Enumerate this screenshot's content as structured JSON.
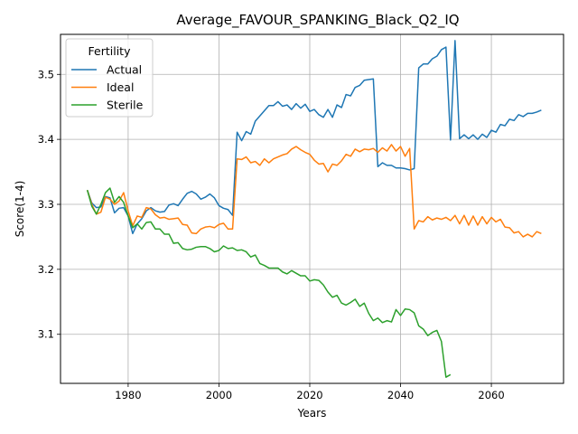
{
  "chart_data": {
    "type": "line",
    "title": "Average_FAVOUR_SPANKING_Black_Q2_IQ",
    "xlabel": "Years",
    "ylabel": "Score(1-4)",
    "xlim": [
      1965.1,
      2075.9
    ],
    "ylim": [
      3.0245,
      3.5616
    ],
    "xticks": [
      1980,
      2000,
      2020,
      2040,
      2060
    ],
    "yticks": [
      3.1,
      3.2,
      3.3,
      3.4,
      3.5
    ],
    "grid": true,
    "legend": {
      "title": "Fertility",
      "position": "top-left"
    },
    "series": [
      {
        "name": "Actual",
        "color": "#1f77b4",
        "x_start": 1971,
        "values": [
          3.322,
          3.302,
          3.295,
          3.296,
          3.312,
          3.31,
          3.287,
          3.294,
          3.295,
          3.282,
          3.255,
          3.27,
          3.278,
          3.29,
          3.295,
          3.29,
          3.288,
          3.289,
          3.299,
          3.301,
          3.298,
          3.308,
          3.317,
          3.32,
          3.316,
          3.308,
          3.311,
          3.316,
          3.31,
          3.298,
          3.294,
          3.292,
          3.283,
          3.411,
          3.398,
          3.412,
          3.408,
          3.428,
          3.436,
          3.444,
          3.452,
          3.452,
          3.458,
          3.451,
          3.453,
          3.446,
          3.455,
          3.448,
          3.454,
          3.443,
          3.446,
          3.438,
          3.434,
          3.446,
          3.434,
          3.453,
          3.449,
          3.469,
          3.467,
          3.48,
          3.483,
          3.491,
          3.492,
          3.493,
          3.358,
          3.364,
          3.36,
          3.36,
          3.356,
          3.356,
          3.355,
          3.353,
          3.355,
          3.51,
          3.516,
          3.516,
          3.524,
          3.528,
          3.538,
          3.542,
          3.399,
          3.552,
          3.401,
          3.407,
          3.401,
          3.407,
          3.4,
          3.408,
          3.403,
          3.414,
          3.411,
          3.423,
          3.421,
          3.431,
          3.429,
          3.438,
          3.435,
          3.44,
          3.44,
          3.442,
          3.445
        ]
      },
      {
        "name": "Ideal",
        "color": "#ff7f0e",
        "x_start": 1971,
        "values": [
          3.322,
          3.3,
          3.285,
          3.288,
          3.311,
          3.308,
          3.3,
          3.305,
          3.318,
          3.29,
          3.267,
          3.282,
          3.28,
          3.295,
          3.293,
          3.284,
          3.279,
          3.28,
          3.277,
          3.278,
          3.279,
          3.269,
          3.268,
          3.256,
          3.255,
          3.262,
          3.265,
          3.266,
          3.264,
          3.269,
          3.271,
          3.262,
          3.262,
          3.37,
          3.369,
          3.373,
          3.364,
          3.366,
          3.36,
          3.37,
          3.364,
          3.37,
          3.373,
          3.376,
          3.378,
          3.385,
          3.389,
          3.384,
          3.38,
          3.377,
          3.368,
          3.362,
          3.363,
          3.35,
          3.362,
          3.36,
          3.367,
          3.377,
          3.374,
          3.385,
          3.381,
          3.385,
          3.384,
          3.386,
          3.38,
          3.387,
          3.382,
          3.392,
          3.382,
          3.389,
          3.374,
          3.386,
          3.262,
          3.275,
          3.273,
          3.281,
          3.276,
          3.279,
          3.277,
          3.28,
          3.275,
          3.283,
          3.27,
          3.283,
          3.268,
          3.282,
          3.268,
          3.281,
          3.27,
          3.28,
          3.273,
          3.277,
          3.265,
          3.264,
          3.256,
          3.258,
          3.25,
          3.254,
          3.25,
          3.258,
          3.255
        ]
      },
      {
        "name": "Sterile",
        "color": "#2ca02c",
        "x_start": 1971,
        "values": [
          3.322,
          3.297,
          3.285,
          3.3,
          3.318,
          3.325,
          3.303,
          3.312,
          3.303,
          3.282,
          3.264,
          3.27,
          3.262,
          3.272,
          3.273,
          3.262,
          3.262,
          3.254,
          3.254,
          3.24,
          3.241,
          3.232,
          3.23,
          3.231,
          3.234,
          3.235,
          3.235,
          3.232,
          3.227,
          3.229,
          3.236,
          3.232,
          3.233,
          3.229,
          3.23,
          3.227,
          3.219,
          3.222,
          3.209,
          3.206,
          3.202,
          3.202,
          3.202,
          3.196,
          3.193,
          3.198,
          3.194,
          3.19,
          3.19,
          3.182,
          3.184,
          3.183,
          3.176,
          3.165,
          3.157,
          3.16,
          3.148,
          3.145,
          3.149,
          3.154,
          3.143,
          3.148,
          3.132,
          3.121,
          3.125,
          3.118,
          3.121,
          3.119,
          3.138,
          3.129,
          3.139,
          3.138,
          3.133,
          3.113,
          3.108,
          3.098,
          3.103,
          3.106,
          3.089,
          3.034,
          3.038
        ]
      }
    ]
  }
}
